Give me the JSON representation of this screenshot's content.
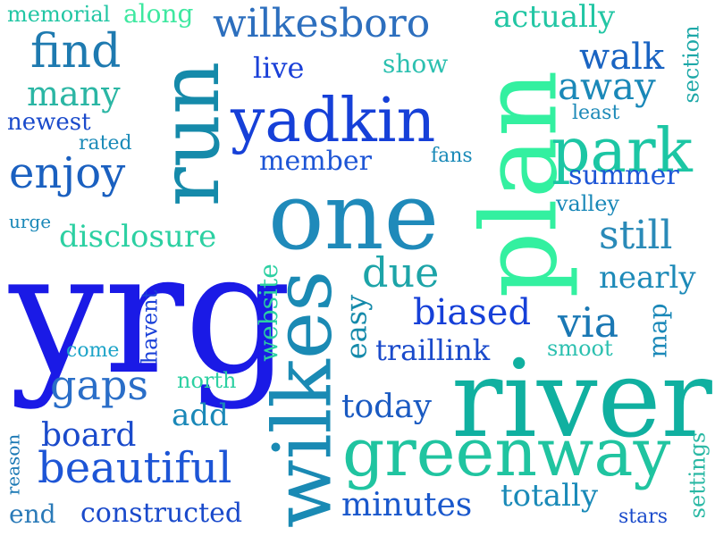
{
  "words": [
    {
      "id": "yrg",
      "text": "yrg",
      "color": "#1a1ae6"
    },
    {
      "id": "river",
      "text": "river",
      "color": "#10b0a0"
    },
    {
      "id": "plan",
      "text": "plan",
      "color": "#33f0a0"
    },
    {
      "id": "one",
      "text": "one",
      "color": "#1f8aba"
    },
    {
      "id": "wilkes",
      "text": "wilkes",
      "color": "#1a8ab4"
    },
    {
      "id": "greenway",
      "text": "greenway",
      "color": "#20c4a0"
    },
    {
      "id": "run",
      "text": "run",
      "color": "#158aaa"
    },
    {
      "id": "yadkin",
      "text": "yadkin",
      "color": "#1640d8"
    },
    {
      "id": "park",
      "text": "park",
      "color": "#1cc6a4"
    },
    {
      "id": "wilkesboro",
      "text": "wilkesboro",
      "color": "#2d6fbe"
    },
    {
      "id": "beautiful",
      "text": "beautiful",
      "color": "#1d55d6"
    },
    {
      "id": "find",
      "text": "find",
      "color": "#1e7ab0"
    },
    {
      "id": "enjoy",
      "text": "enjoy",
      "color": "#1a60c0"
    },
    {
      "id": "gaps",
      "text": "gaps",
      "color": "#2a6ec8"
    },
    {
      "id": "due",
      "text": "due",
      "color": "#1da4a8"
    },
    {
      "id": "still",
      "text": "still",
      "color": "#2a8ab8"
    },
    {
      "id": "via",
      "text": "via",
      "color": "#1a78b4"
    },
    {
      "id": "many",
      "text": "many",
      "color": "#2bb6a4"
    },
    {
      "id": "walk",
      "text": "walk",
      "color": "#1a64c2"
    },
    {
      "id": "away",
      "text": "away",
      "color": "#1a88b8"
    },
    {
      "id": "biased",
      "text": "biased",
      "color": "#1640d8"
    },
    {
      "id": "member",
      "text": "member",
      "color": "#1d55d6"
    },
    {
      "id": "disclosure",
      "text": "disclosure",
      "color": "#2cd0a2"
    },
    {
      "id": "board",
      "text": "board",
      "color": "#1a4acb"
    },
    {
      "id": "today",
      "text": "today",
      "color": "#1a5ac2"
    },
    {
      "id": "minutes",
      "text": "minutes",
      "color": "#1a58cc"
    },
    {
      "id": "totally",
      "text": "totally",
      "color": "#1a8ab8"
    },
    {
      "id": "constructed",
      "text": "constructed",
      "color": "#1a4acb"
    },
    {
      "id": "summer",
      "text": "summer",
      "color": "#1d55d6"
    },
    {
      "id": "nearly",
      "text": "nearly",
      "color": "#1d8ab8"
    },
    {
      "id": "traillink",
      "text": "traillink",
      "color": "#1a4acb"
    },
    {
      "id": "easy",
      "text": "easy",
      "color": "#158aaa"
    },
    {
      "id": "website",
      "text": "website",
      "color": "#2cd0a2"
    },
    {
      "id": "live",
      "text": "live",
      "color": "#1a40d8"
    },
    {
      "id": "show",
      "text": "show",
      "color": "#2cc0b0"
    },
    {
      "id": "add",
      "text": "add",
      "color": "#1a88b8"
    },
    {
      "id": "end",
      "text": "end",
      "color": "#2a7ab8"
    },
    {
      "id": "actually",
      "text": "actually",
      "color": "#22c6a4"
    },
    {
      "id": "along",
      "text": "along",
      "color": "#3ee8a0"
    },
    {
      "id": "memorial",
      "text": "memorial",
      "color": "#22c6a4"
    },
    {
      "id": "newest",
      "text": "newest",
      "color": "#1a4acb"
    },
    {
      "id": "rated",
      "text": "rated",
      "color": "#1a8ab8"
    },
    {
      "id": "fans",
      "text": "fans",
      "color": "#1a8ab8"
    },
    {
      "id": "least",
      "text": "least",
      "color": "#1d8ab8"
    },
    {
      "id": "valley",
      "text": "valley",
      "color": "#1a88b8"
    },
    {
      "id": "urge",
      "text": "urge",
      "color": "#1a88b8"
    },
    {
      "id": "come",
      "text": "come",
      "color": "#1da4c8"
    },
    {
      "id": "north",
      "text": "north",
      "color": "#2cd0a2"
    },
    {
      "id": "smoot",
      "text": "smoot",
      "color": "#2cc0b0"
    },
    {
      "id": "stars",
      "text": "stars",
      "color": "#1a4acb"
    },
    {
      "id": "section",
      "text": "section",
      "color": "#1da8a8"
    },
    {
      "id": "havent",
      "text": "havent",
      "color": "#1a40d8"
    },
    {
      "id": "map",
      "text": "map",
      "color": "#1a88b8"
    },
    {
      "id": "reason",
      "text": "reason",
      "color": "#1a78b4"
    },
    {
      "id": "settings",
      "text": "settings",
      "color": "#2ab8a4"
    }
  ]
}
